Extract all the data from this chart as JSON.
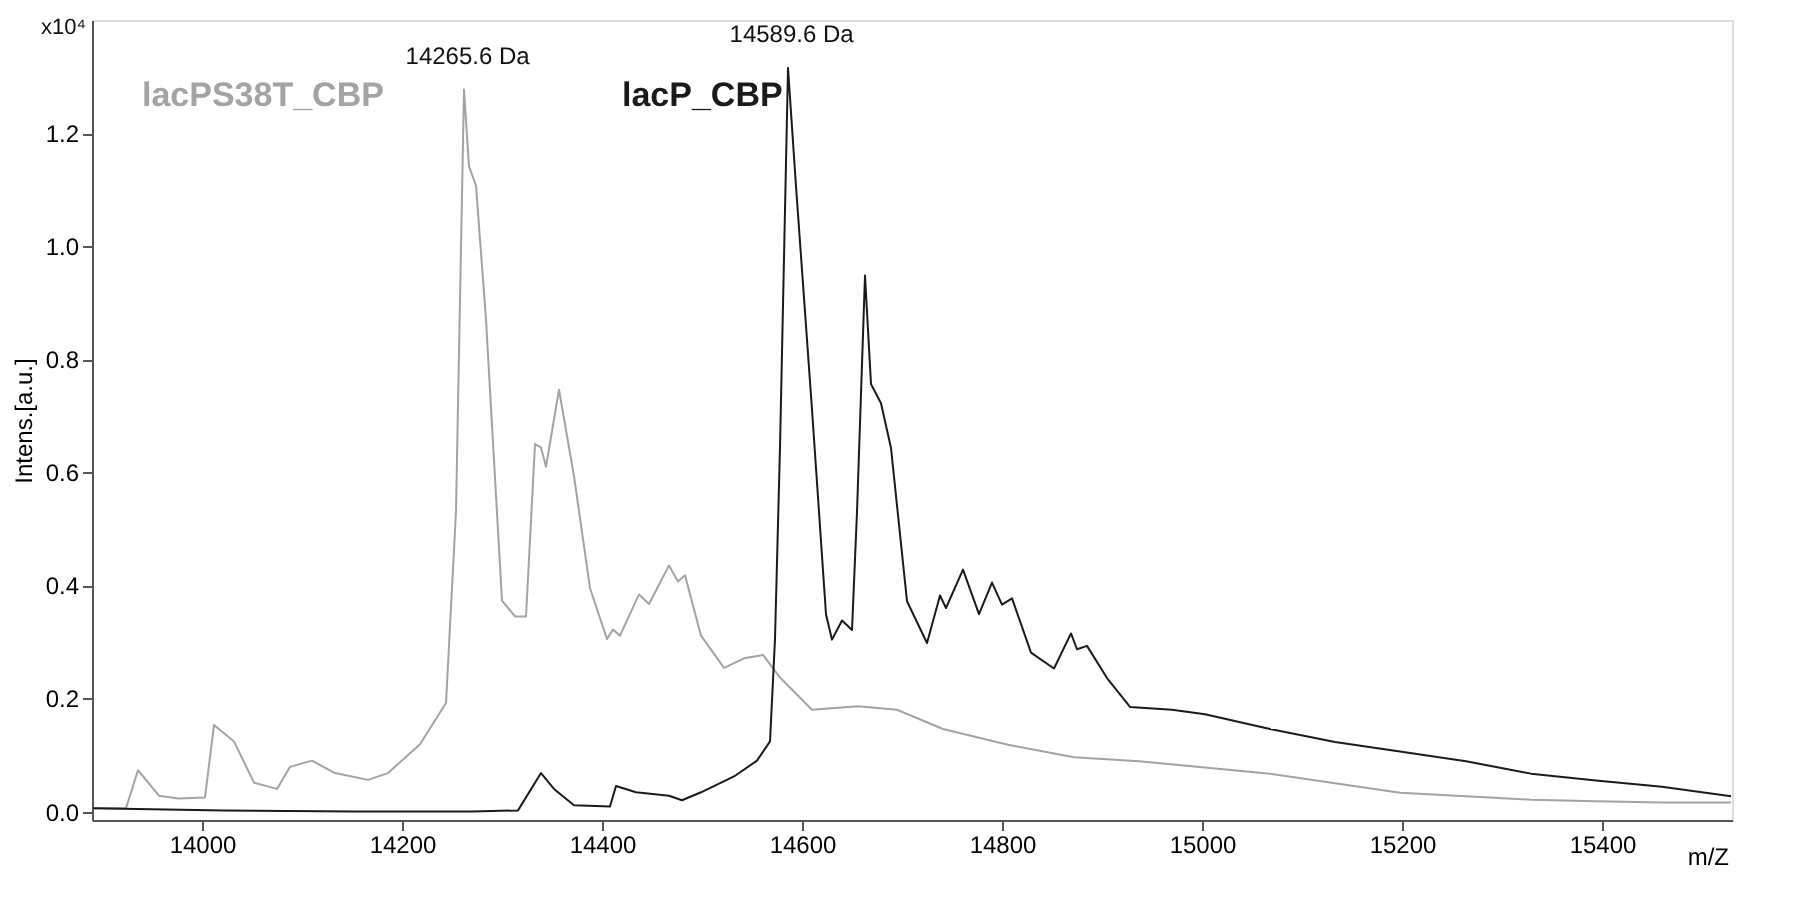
{
  "chart_data": {
    "type": "line",
    "xlabel": "m/Z",
    "ylabel": "Intens.[a.u.]",
    "xlim": [
      13890,
      15530
    ],
    "ylim": [
      -0.015,
      1.4
    ],
    "xticks": [
      14000,
      14200,
      14400,
      14600,
      14800,
      15000,
      15200,
      15400
    ],
    "yticks": [
      {
        "value": 0,
        "label": "0.0"
      },
      {
        "value": 0.2,
        "label": "0.2"
      },
      {
        "value": 0.4,
        "label": "0.4"
      },
      {
        "value": 0.6,
        "label": "0.6"
      },
      {
        "value": 0.8,
        "label": "0.8"
      },
      {
        "value": 1.0,
        "label": "1.0"
      },
      {
        "value": 1.2,
        "label": "1.2"
      }
    ],
    "grid": false,
    "legend": false,
    "marker": "none",
    "line_style": "solid",
    "series": [
      {
        "name": "lacPS38T_CBP",
        "color": "#a3a3a3",
        "x": [
          13891,
          13924,
          13936,
          13957,
          13976,
          14003,
          14012,
          14032,
          14052,
          14075,
          14088,
          14110,
          14133,
          14166,
          14186,
          14218,
          14244,
          14254,
          14262,
          14267,
          14274,
          14284,
          14300,
          14313,
          14324,
          14333,
          14339,
          14344,
          14357,
          14372,
          14388,
          14405,
          14411,
          14418,
          14437,
          14447,
          14467,
          14476,
          14483,
          14499,
          14522,
          14542,
          14561,
          14578,
          14610,
          14656,
          14695,
          14741,
          14806,
          14872,
          14937,
          15003,
          15068,
          15133,
          15198,
          15264,
          15329,
          15394,
          15460,
          15529
        ],
        "values": [
          0.006,
          0.006,
          0.073,
          0.028,
          0.023,
          0.025,
          0.153,
          0.124,
          0.051,
          0.04,
          0.079,
          0.09,
          0.068,
          0.056,
          0.068,
          0.119,
          0.192,
          0.531,
          1.277,
          1.141,
          1.107,
          0.87,
          0.373,
          0.345,
          0.345,
          0.65,
          0.644,
          0.61,
          0.746,
          0.593,
          0.395,
          0.305,
          0.322,
          0.311,
          0.384,
          0.367,
          0.435,
          0.407,
          0.418,
          0.311,
          0.254,
          0.271,
          0.277,
          0.237,
          0.18,
          0.186,
          0.18,
          0.146,
          0.118,
          0.096,
          0.089,
          0.078,
          0.067,
          0.05,
          0.033,
          0.027,
          0.021,
          0.018,
          0.016,
          0.016
        ]
      },
      {
        "name": "lacP_CBP",
        "color": "#1a1a1a",
        "x": [
          13891,
          14022,
          14153,
          14271,
          14316,
          14339,
          14352,
          14372,
          14408,
          14414,
          14434,
          14467,
          14480,
          14499,
          14532,
          14555,
          14568,
          14573,
          14578,
          14586,
          14594,
          14610,
          14624,
          14630,
          14640,
          14650,
          14655,
          14663,
          14669,
          14679,
          14689,
          14705,
          14725,
          14738,
          14744,
          14761,
          14777,
          14790,
          14800,
          14810,
          14829,
          14852,
          14869,
          14875,
          14885,
          14905,
          14928,
          14970,
          15003,
          15068,
          15133,
          15198,
          15264,
          15329,
          15394,
          15460,
          15529
        ],
        "values": [
          0.006,
          0.002,
          0.0,
          0.0,
          0.002,
          0.068,
          0.04,
          0.011,
          0.009,
          0.045,
          0.034,
          0.028,
          0.02,
          0.034,
          0.062,
          0.09,
          0.124,
          0.305,
          0.644,
          1.315,
          1.106,
          0.711,
          0.349,
          0.304,
          0.338,
          0.321,
          0.53,
          0.948,
          0.756,
          0.722,
          0.643,
          0.372,
          0.298,
          0.382,
          0.36,
          0.428,
          0.349,
          0.405,
          0.366,
          0.377,
          0.281,
          0.253,
          0.315,
          0.287,
          0.293,
          0.236,
          0.185,
          0.18,
          0.172,
          0.146,
          0.123,
          0.106,
          0.089,
          0.067,
          0.055,
          0.044,
          0.027
        ]
      }
    ],
    "annotations": [
      "x10⁴",
      {
        "text": "14265.6 Da",
        "x": 14265.6,
        "y": 1.277
      },
      {
        "text": "14589.6 Da",
        "x": 14589.6,
        "y": 1.315
      }
    ]
  }
}
